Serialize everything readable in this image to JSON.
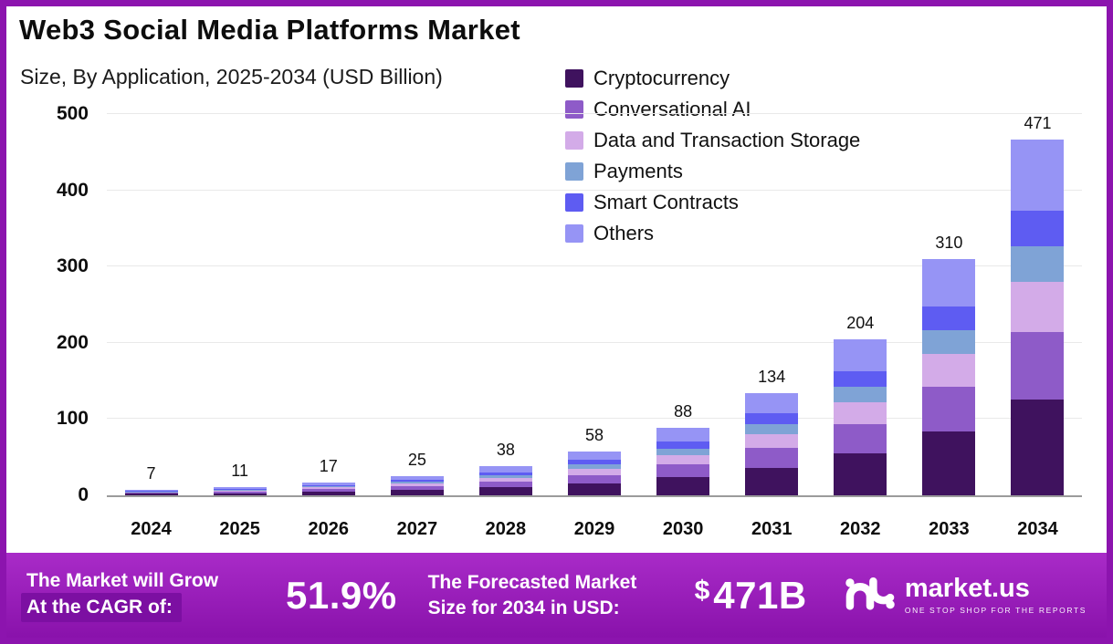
{
  "header": {
    "title": "Web3 Social Media Platforms Market",
    "subtitle": "Size, By Application, 2025-2034 (USD Billion)"
  },
  "chart_data": {
    "type": "bar",
    "stacked": true,
    "title": "Web3 Social Media Platforms Market Size, By Application, 2025-2034 (USD Billion)",
    "categories": [
      "2024",
      "2025",
      "2026",
      "2027",
      "2028",
      "2029",
      "2030",
      "2031",
      "2032",
      "2033",
      "2034"
    ],
    "totals": [
      7,
      11,
      17,
      25,
      38,
      58,
      88,
      134,
      204,
      310,
      471
    ],
    "series": [
      {
        "name": "Cryptocurrency",
        "color": "#3f125e",
        "values": [
          1.9,
          3.0,
          4.6,
          6.8,
          10.3,
          15.7,
          23.8,
          36.2,
          55.1,
          83.7,
          127.2
        ]
      },
      {
        "name": "Conversational AI",
        "color": "#8e5bc8",
        "values": [
          1.3,
          2.1,
          3.2,
          4.8,
          7.2,
          11.0,
          16.7,
          25.5,
          38.8,
          58.9,
          89.5
        ]
      },
      {
        "name": "Data and Transaction Storage",
        "color": "#d3abe8",
        "values": [
          1.0,
          1.5,
          2.4,
          3.5,
          5.3,
          8.1,
          12.3,
          18.8,
          28.6,
          43.4,
          65.9
        ]
      },
      {
        "name": "Payments",
        "color": "#7fa3d6",
        "values": [
          0.7,
          1.1,
          1.7,
          2.5,
          3.8,
          5.8,
          8.8,
          13.4,
          20.4,
          31.0,
          47.1
        ]
      },
      {
        "name": "Smart Contracts",
        "color": "#5e5cf2",
        "values": [
          0.7,
          1.1,
          1.7,
          2.5,
          3.8,
          5.8,
          8.8,
          13.4,
          20.4,
          31.0,
          47.1
        ]
      },
      {
        "name": "Others",
        "color": "#9694f5",
        "values": [
          1.4,
          2.2,
          3.4,
          5.0,
          7.6,
          11.6,
          17.6,
          26.8,
          40.8,
          62.0,
          94.2
        ]
      }
    ],
    "xlabel": "",
    "ylabel": "",
    "ylim": [
      0,
      500
    ],
    "yticks": [
      0,
      100,
      200,
      300,
      400,
      500
    ],
    "grid": true,
    "legend_position": "top-right"
  },
  "banner": {
    "cagr_label_line1": "The Market will Grow",
    "cagr_label_line2": "At the CAGR of:",
    "cagr_value": "51.9%",
    "forecast_label_line1": "The Forecasted Market",
    "forecast_label_line2": "Size for 2034 in USD:",
    "forecast_currency": "$",
    "forecast_amount": "471B",
    "brand_name": "market.us",
    "brand_tagline": "ONE STOP SHOP FOR THE REPORTS"
  },
  "colors": {
    "frame": "#8c14ae",
    "banner-top": "#a92bc8",
    "banner-bottom": "#8912ab",
    "banner-highlight": "#7c0fa2"
  }
}
